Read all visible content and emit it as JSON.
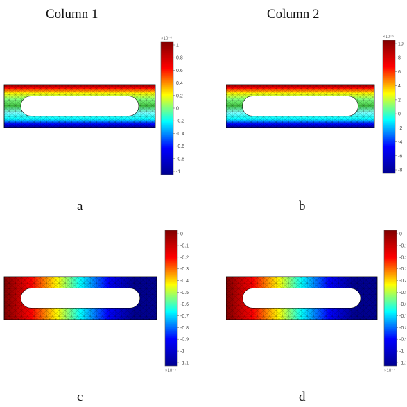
{
  "headers": [
    {
      "underlined": "Column",
      "rest": " 1"
    },
    {
      "underlined": "Column",
      "rest": " 2"
    }
  ],
  "panels": [
    {
      "label": "a",
      "colorbar_exponent": "×10⁻⁶",
      "colorbar_exponent_pos": "top",
      "colorbar_ticks": [
        "1",
        "0.8",
        "0.6",
        "0.4",
        "0.2",
        "0",
        "-0.2",
        "-0.4",
        "-0.6",
        "-0.8",
        "-1"
      ],
      "field": "vertical"
    },
    {
      "label": "b",
      "colorbar_exponent": "×10⁻⁶",
      "colorbar_exponent_pos": "top",
      "colorbar_ticks": [
        "10",
        "8",
        "6",
        "4",
        "2",
        "0",
        "-2",
        "-4",
        "-6",
        "-8"
      ],
      "field": "vertical"
    },
    {
      "label": "c",
      "colorbar_exponent": "×10⁻⁴",
      "colorbar_exponent_pos": "bottom",
      "colorbar_ticks": [
        "0",
        "-0.1",
        "-0.2",
        "-0.3",
        "-0.4",
        "-0.5",
        "-0.6",
        "-0.7",
        "-0.8",
        "-0.9",
        "-1",
        "-1.1"
      ],
      "field": "horizontal"
    },
    {
      "label": "d",
      "colorbar_exponent": "×10⁻⁴",
      "colorbar_exponent_pos": "bottom",
      "colorbar_ticks": [
        "0",
        "-0.1",
        "-0.2",
        "-0.3",
        "-0.4",
        "-0.5",
        "-0.6",
        "-0.7",
        "-0.8",
        "-0.9",
        "-1",
        "-1.1"
      ],
      "field": "horizontal"
    }
  ],
  "colors": {
    "jet_dark_red": "#800000",
    "jet_red": "#ff0000",
    "jet_yellow": "#ffff00",
    "jet_cyan": "#00ffff",
    "jet_blue": "#0000ff",
    "jet_dark_blue": "#00008f",
    "mesh_line": "#000000"
  }
}
